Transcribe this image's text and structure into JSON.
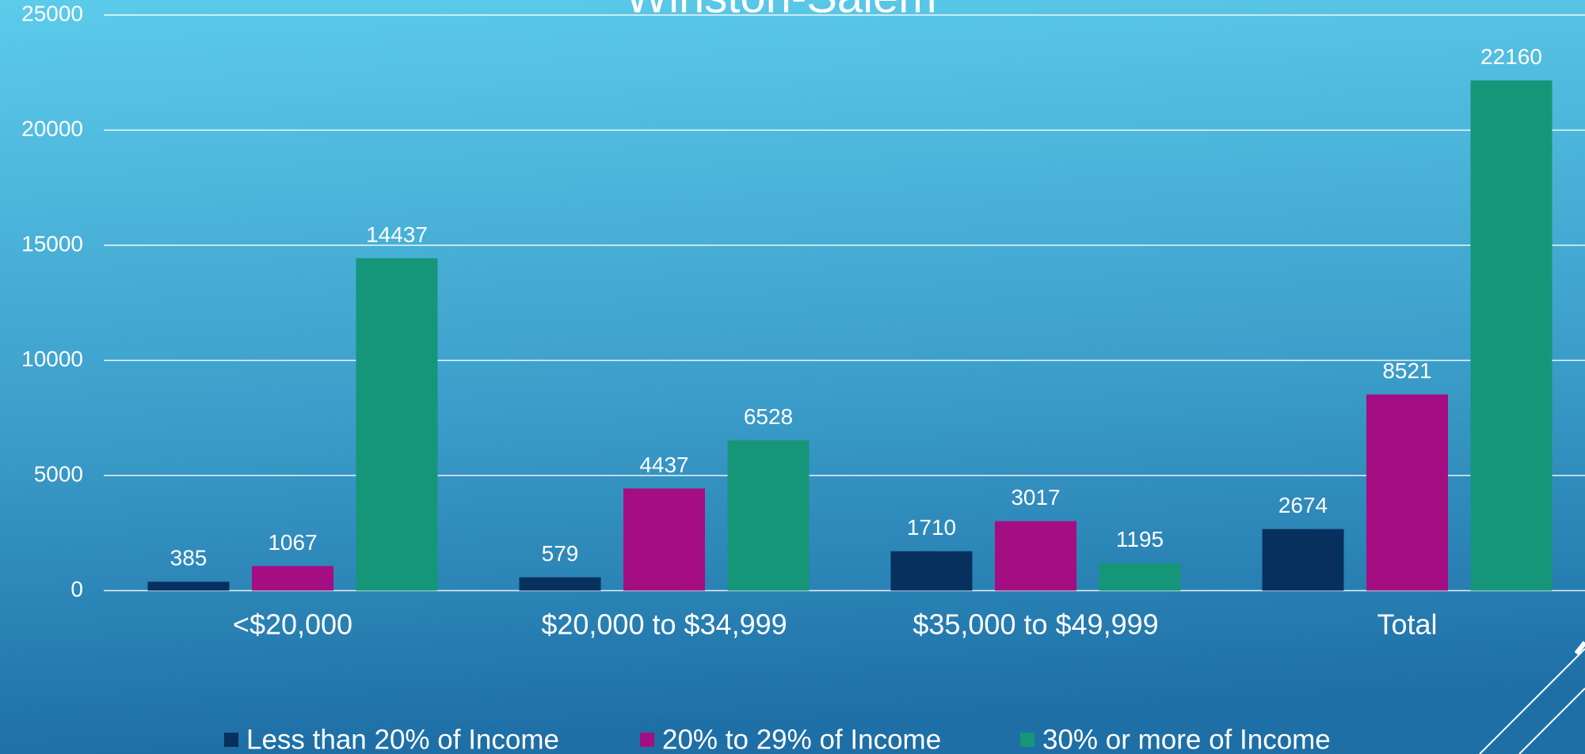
{
  "chart_data": {
    "type": "bar",
    "title": "Winston-Salem",
    "categories": [
      "<$20,000",
      "$20,000 to $34,999",
      "$35,000 to $49,999",
      "Total"
    ],
    "series": [
      {
        "name": "Less than 20% of Income",
        "color": "#07305f",
        "values": [
          385,
          579,
          1710,
          2674
        ]
      },
      {
        "name": "20% to 29% of Income",
        "color": "#a50e82",
        "values": [
          1067,
          4437,
          3017,
          8521
        ]
      },
      {
        "name": "30% or more of Income",
        "color": "#159679",
        "values": [
          14437,
          6528,
          1195,
          22160
        ]
      }
    ],
    "ylim": [
      0,
      25000
    ],
    "yticks": [
      0,
      5000,
      10000,
      15000,
      20000,
      25000
    ],
    "grid": true,
    "legend": "bottom"
  }
}
